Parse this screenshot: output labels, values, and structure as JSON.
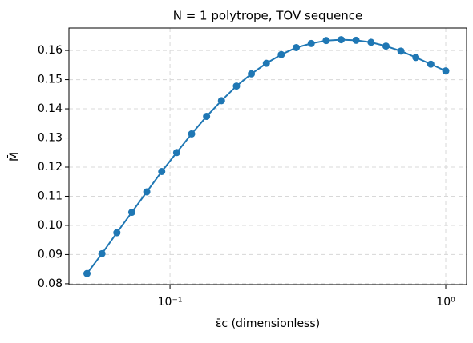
{
  "chart_data": {
    "type": "line",
    "title": "N = 1 polytrope, TOV sequence",
    "x_label": "ε̄c (dimensionless)",
    "y_label": "M̄",
    "x": [
      0.05,
      0.05664,
      0.06417,
      0.0727,
      0.08236,
      0.09333,
      0.10573,
      0.11979,
      0.1357,
      0.1537,
      0.1742,
      0.1973,
      0.2236,
      0.2533,
      0.287,
      0.3252,
      0.3684,
      0.4174,
      0.4729,
      0.5358,
      0.607,
      0.6877,
      0.7792,
      0.8826,
      1
    ],
    "series": [
      {
        "color": "#1f77b4",
        "values": [
          0.0835,
          0.0903,
          0.0975,
          0.1045,
          0.1115,
          0.1185,
          0.125,
          0.1314,
          0.1374,
          0.1428,
          0.1478,
          0.152,
          0.1556,
          0.1586,
          0.161,
          0.1624,
          0.1634,
          0.1637,
          0.1635,
          0.1628,
          0.1615,
          0.1598,
          0.1576,
          0.1553,
          0.153
        ]
      }
    ],
    "xscale": "log",
    "xlim": [
      0.043,
      1.19
    ],
    "ylim": [
      0.0797,
      0.1677
    ],
    "xticks": [
      {
        "value": 0.1,
        "label": "10⁻¹"
      },
      {
        "value": 1,
        "label": "10⁰"
      }
    ],
    "yticks": [
      0.08,
      0.09,
      {
        "value": 0.1,
        "label": "0.10"
      },
      0.11,
      0.12,
      0.13,
      0.14,
      0.15,
      0.16
    ],
    "grid": true
  }
}
